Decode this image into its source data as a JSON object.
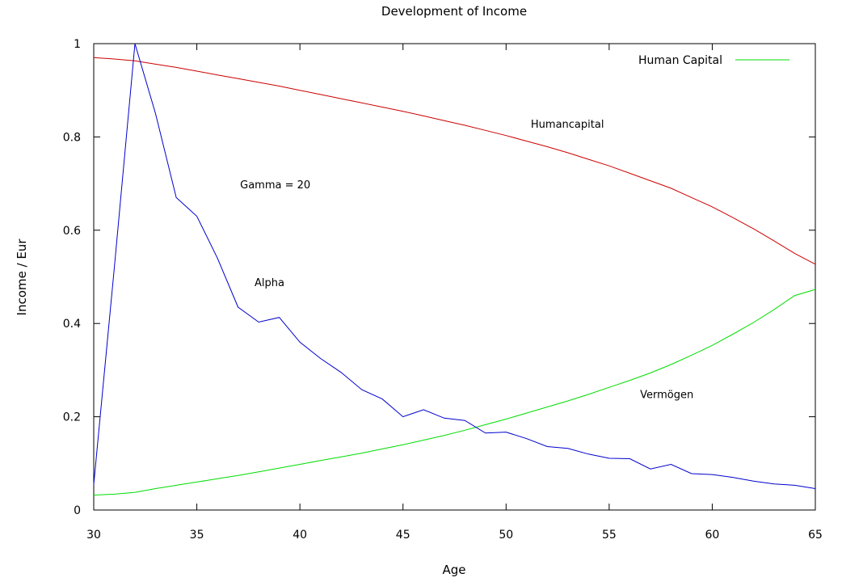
{
  "chart_data": {
    "type": "line",
    "title": "Development of Income",
    "xlabel": "Age",
    "ylabel": "Income / Eur",
    "xlim": [
      30,
      65
    ],
    "ylim": [
      0,
      1
    ],
    "xticks": [
      30,
      35,
      40,
      45,
      50,
      55,
      60,
      65
    ],
    "yticks": [
      0,
      0.2,
      0.4,
      0.6,
      0.8,
      1
    ],
    "ytick_labels": [
      "0",
      "0.2",
      "0.4",
      "0.6",
      "0.8",
      "1"
    ],
    "legend": {
      "position": "top-right",
      "entries": [
        {
          "label": "Human Capital",
          "color": "#00dd00"
        }
      ]
    },
    "annotations": [
      {
        "text": "Humancapital",
        "x": 51.2,
        "y": 0.82
      },
      {
        "text": "Gamma = 20",
        "x": 37.1,
        "y": 0.69
      },
      {
        "text": "Alpha",
        "x": 37.8,
        "y": 0.48
      },
      {
        "text": "Vermögen",
        "x": 56.5,
        "y": 0.24
      }
    ],
    "series": [
      {
        "name": "Humancapital",
        "color": "#cc0000",
        "x": [
          30,
          31,
          32,
          33,
          34,
          35,
          36,
          37,
          38,
          39,
          40,
          41,
          42,
          43,
          44,
          45,
          46,
          47,
          48,
          49,
          50,
          51,
          52,
          53,
          54,
          55,
          56,
          57,
          58,
          59,
          60,
          61,
          62,
          63,
          64,
          65
        ],
        "values": [
          0.97,
          0.967,
          0.963,
          0.956,
          0.949,
          0.941,
          0.933,
          0.925,
          0.917,
          0.909,
          0.9,
          0.891,
          0.882,
          0.873,
          0.864,
          0.855,
          0.845,
          0.835,
          0.825,
          0.814,
          0.803,
          0.791,
          0.779,
          0.766,
          0.752,
          0.738,
          0.722,
          0.706,
          0.69,
          0.67,
          0.65,
          0.627,
          0.603,
          0.577,
          0.55,
          0.527
        ]
      },
      {
        "name": "Human Capital",
        "color": "#00dd00",
        "x": [
          30,
          31,
          32,
          33,
          34,
          35,
          36,
          37,
          38,
          39,
          40,
          41,
          42,
          43,
          44,
          45,
          46,
          47,
          48,
          49,
          50,
          51,
          52,
          53,
          54,
          55,
          56,
          57,
          58,
          59,
          60,
          61,
          62,
          63,
          64,
          65
        ],
        "values": [
          0.032,
          0.034,
          0.038,
          0.046,
          0.053,
          0.06,
          0.067,
          0.074,
          0.082,
          0.09,
          0.098,
          0.106,
          0.114,
          0.122,
          0.131,
          0.14,
          0.15,
          0.16,
          0.171,
          0.183,
          0.195,
          0.208,
          0.221,
          0.234,
          0.248,
          0.263,
          0.278,
          0.294,
          0.312,
          0.332,
          0.353,
          0.377,
          0.402,
          0.43,
          0.46,
          0.473
        ]
      },
      {
        "name": "Alpha",
        "color": "#0000cc",
        "x": [
          30,
          31,
          32,
          33,
          34,
          35,
          36,
          37,
          38,
          39,
          40,
          41,
          42,
          43,
          44,
          45,
          46,
          47,
          48,
          49,
          50,
          51,
          52,
          53,
          54,
          55,
          56,
          57,
          58,
          59,
          60,
          61,
          62,
          63,
          64,
          65
        ],
        "values": [
          0.055,
          0.52,
          1.0,
          0.85,
          0.67,
          0.63,
          0.54,
          0.435,
          0.403,
          0.413,
          0.36,
          0.325,
          0.295,
          0.258,
          0.238,
          0.2,
          0.215,
          0.197,
          0.192,
          0.165,
          0.167,
          0.153,
          0.136,
          0.132,
          0.12,
          0.111,
          0.11,
          0.088,
          0.098,
          0.078,
          0.076,
          0.07,
          0.062,
          0.056,
          0.053,
          0.046
        ]
      }
    ]
  }
}
